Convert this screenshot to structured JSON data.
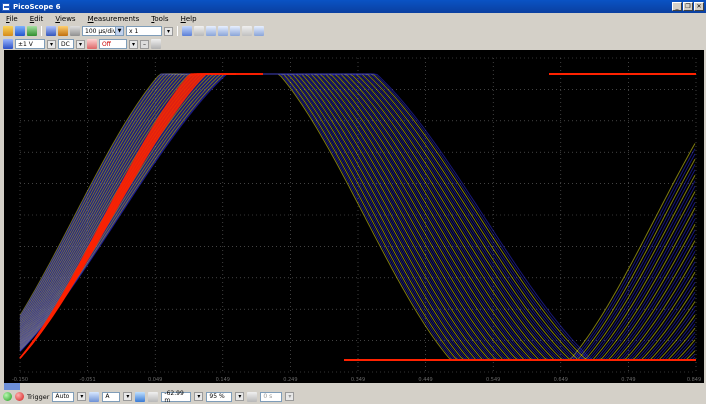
{
  "window": {
    "title": "PicoScope 6",
    "minimize": "_",
    "restore": "❐",
    "close": "✕"
  },
  "menu": [
    "File",
    "Edit",
    "Views",
    "Measurements",
    "Tools",
    "Help"
  ],
  "toolbar": {
    "timebase": "100 µs/div",
    "zoom": "x 1"
  },
  "channel": {
    "name": "A",
    "range": "±1 V",
    "coupling": "DC",
    "secondary": "Off"
  },
  "x_ticks": [
    "-0.150",
    "-0.051",
    "0.049",
    "0.149",
    "0.249",
    "0.349",
    "0.449",
    "0.549",
    "0.649",
    "0.749",
    "0.849"
  ],
  "status": {
    "trigger_label": "Trigger",
    "trigger_mode": "Auto",
    "channel": "A",
    "level": "-62.99 m",
    "pretrigger": "95 %",
    "delay": "0 s"
  },
  "colors": {
    "trace_blue": "#2b2bd9",
    "trace_yellow": "#e8e21a",
    "trace_red": "#ff2200",
    "grid": "#6a6a6a",
    "background": "#000000"
  }
}
